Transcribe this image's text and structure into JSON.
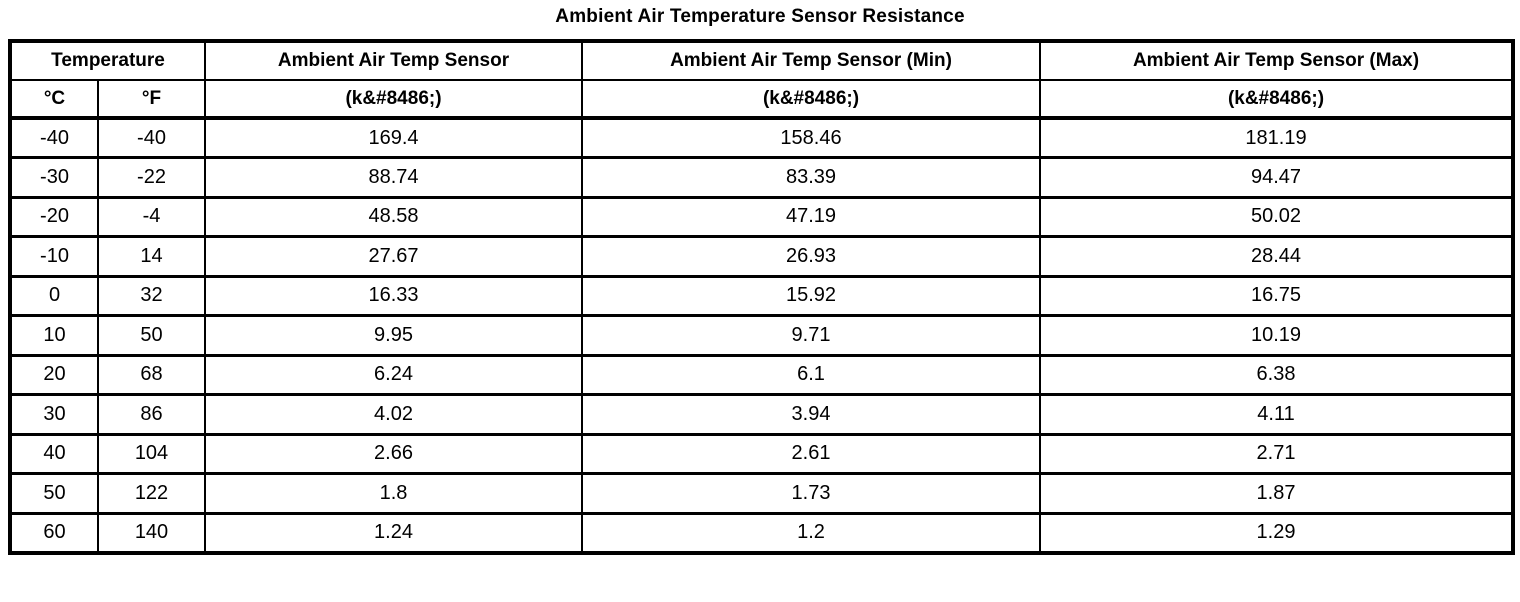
{
  "title": "Ambient Air Temperature Sensor Resistance",
  "table": {
    "headers": {
      "temperature_group": "Temperature",
      "celsius": "°C",
      "fahrenheit": "°F",
      "sensor": "Ambient Air Temp Sensor",
      "sensor_min": "Ambient Air Temp Sensor (Min)",
      "sensor_max": "Ambient Air Temp Sensor (Max)",
      "unit_sensor": "(k&#8486;)",
      "unit_min": "(k&#8486;)",
      "unit_max": "(k&#8486;)"
    },
    "rows": [
      {
        "c": "-40",
        "f": "-40",
        "sensor": "169.4",
        "min": "158.46",
        "max": "181.19"
      },
      {
        "c": "-30",
        "f": "-22",
        "sensor": "88.74",
        "min": "83.39",
        "max": "94.47"
      },
      {
        "c": "-20",
        "f": "-4",
        "sensor": "48.58",
        "min": "47.19",
        "max": "50.02"
      },
      {
        "c": "-10",
        "f": "14",
        "sensor": "27.67",
        "min": "26.93",
        "max": "28.44"
      },
      {
        "c": "0",
        "f": "32",
        "sensor": "16.33",
        "min": "15.92",
        "max": "16.75"
      },
      {
        "c": "10",
        "f": "50",
        "sensor": "9.95",
        "min": "9.71",
        "max": "10.19"
      },
      {
        "c": "20",
        "f": "68",
        "sensor": "6.24",
        "min": "6.1",
        "max": "6.38"
      },
      {
        "c": "30",
        "f": "86",
        "sensor": "4.02",
        "min": "3.94",
        "max": "4.11"
      },
      {
        "c": "40",
        "f": "104",
        "sensor": "2.66",
        "min": "2.61",
        "max": "2.71"
      },
      {
        "c": "50",
        "f": "122",
        "sensor": "1.8",
        "min": "1.73",
        "max": "1.87"
      },
      {
        "c": "60",
        "f": "140",
        "sensor": "1.24",
        "min": "1.2",
        "max": "1.29"
      }
    ]
  },
  "chart_data": {
    "type": "table",
    "title": "Ambient Air Temperature Sensor Resistance",
    "columns": [
      "Temperature °C",
      "Temperature °F",
      "Ambient Air Temp Sensor (k&#8486;)",
      "Ambient Air Temp Sensor (Min) (k&#8486;)",
      "Ambient Air Temp Sensor (Max) (k&#8486;)"
    ],
    "rows": [
      [
        -40,
        -40,
        169.4,
        158.46,
        181.19
      ],
      [
        -30,
        -22,
        88.74,
        83.39,
        94.47
      ],
      [
        -20,
        -4,
        48.58,
        47.19,
        50.02
      ],
      [
        -10,
        14,
        27.67,
        26.93,
        28.44
      ],
      [
        0,
        32,
        16.33,
        15.92,
        16.75
      ],
      [
        10,
        50,
        9.95,
        9.71,
        10.19
      ],
      [
        20,
        68,
        6.24,
        6.1,
        6.38
      ],
      [
        30,
        86,
        4.02,
        3.94,
        4.11
      ],
      [
        40,
        104,
        2.66,
        2.61,
        2.71
      ],
      [
        50,
        122,
        1.8,
        1.73,
        1.87
      ],
      [
        60,
        140,
        1.24,
        1.2,
        1.29
      ]
    ]
  }
}
